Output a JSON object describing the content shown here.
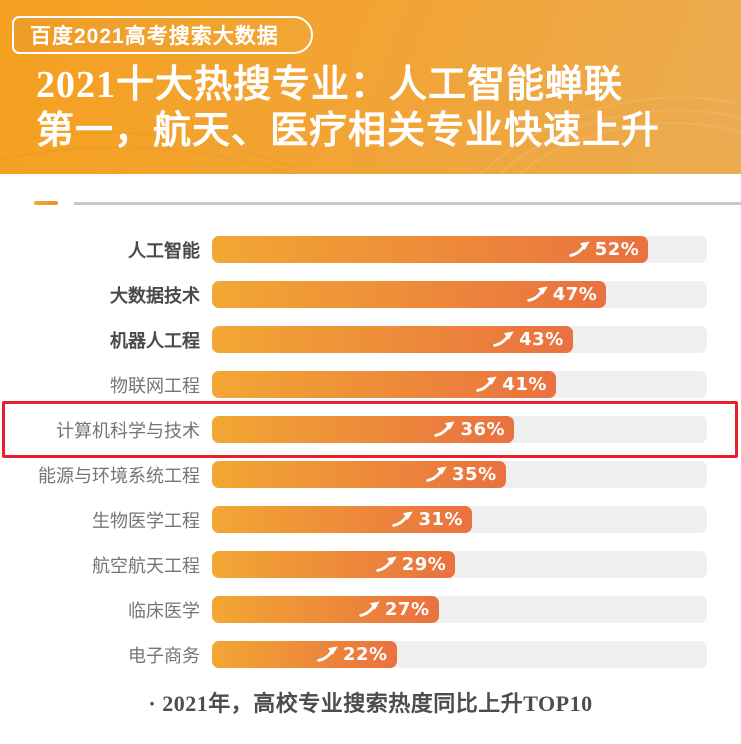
{
  "header": {
    "badge": "百度2021高考搜索大数据",
    "title_line1": "2021十大热搜专业：人工智能蝉联",
    "title_line2": "第一，航天、医疗相关专业快速上升"
  },
  "chart_data": {
    "type": "bar",
    "orientation": "horizontal",
    "title": "2021十大热搜专业",
    "categories": [
      "人工智能",
      "大数据技术",
      "机器人工程",
      "物联网工程",
      "计算机科学与技术",
      "能源与环境系统工程",
      "生物医学工程",
      "航空航天工程",
      "临床医学",
      "电子商务"
    ],
    "values": [
      52,
      47,
      43,
      41,
      36,
      35,
      31,
      29,
      27,
      22
    ],
    "value_labels": [
      "52%",
      "47%",
      "43%",
      "41%",
      "36%",
      "35%",
      "31%",
      "29%",
      "27%",
      "22%"
    ],
    "value_suffix": "%",
    "xlim": [
      0,
      59
    ],
    "grid": false,
    "legend": false,
    "bold_count": 3,
    "highlight_index": 4,
    "footnote": "· 2021年，高校专业搜索热度同比上升TOP10"
  },
  "colors": {
    "header_gradient_start": "#F5A01F",
    "header_gradient_end": "#EBAC52",
    "badge_fill": "#EE9D27",
    "bar_gradient_start": "#F2A733",
    "bar_gradient_end": "#E97140",
    "bar_track": "#EFEFEF",
    "highlight_border": "#E8202E",
    "separator_rule": "#C9C9C9",
    "label_bold": "#4A4A4A",
    "label_normal": "#757575",
    "footnote_text": "#4D4D4D"
  }
}
